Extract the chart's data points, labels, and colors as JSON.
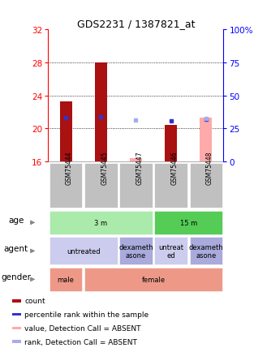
{
  "title": "GDS2231 / 1387821_at",
  "samples": [
    "GSM75444",
    "GSM75445",
    "GSM75447",
    "GSM75446",
    "GSM75448"
  ],
  "ylim_left": [
    16,
    32
  ],
  "ylim_right": [
    0,
    100
  ],
  "yticks_left": [
    16,
    20,
    24,
    28,
    32
  ],
  "yticks_right": [
    0,
    25,
    50,
    75,
    100
  ],
  "ytick_right_labels": [
    "0",
    "25",
    "50",
    "75",
    "100%"
  ],
  "grid_lines": [
    20,
    24,
    28
  ],
  "bars": {
    "count_color": "#aa1111",
    "count_values": [
      23.3,
      28.0,
      null,
      20.4,
      null
    ],
    "rank_color": "#3333cc",
    "rank_values": [
      21.3,
      21.4,
      null,
      20.9,
      21.1
    ],
    "absent_value_color": "#ffaaaa",
    "absent_values": [
      null,
      null,
      16.4,
      null,
      21.3
    ],
    "absent_rank_color": "#aaaaee",
    "absent_rank_values": [
      null,
      null,
      21.0,
      null,
      21.2
    ]
  },
  "sample_box_color": "#c0c0c0",
  "age_groups": [
    {
      "text": "3 m",
      "cols": [
        0,
        1,
        2
      ],
      "color": "#aaeaaa"
    },
    {
      "text": "15 m",
      "cols": [
        3,
        4
      ],
      "color": "#55cc55"
    }
  ],
  "agent_groups": [
    {
      "text": "untreated",
      "cols": [
        0,
        1
      ],
      "color": "#ccccee"
    },
    {
      "text": "dexameth\nasone",
      "cols": [
        2
      ],
      "color": "#aaaadd"
    },
    {
      "text": "untreat\ned",
      "cols": [
        3
      ],
      "color": "#ccccee"
    },
    {
      "text": "dexameth\nasone",
      "cols": [
        4
      ],
      "color": "#aaaadd"
    }
  ],
  "gender_groups": [
    {
      "text": "male",
      "cols": [
        0
      ],
      "color": "#ee9988"
    },
    {
      "text": "female",
      "cols": [
        1,
        2,
        3,
        4
      ],
      "color": "#ee9988"
    }
  ],
  "row_labels": [
    "age",
    "agent",
    "gender"
  ],
  "legend": [
    {
      "color": "#aa1111",
      "label": "count"
    },
    {
      "color": "#3333cc",
      "label": "percentile rank within the sample"
    },
    {
      "color": "#ffaaaa",
      "label": "value, Detection Call = ABSENT"
    },
    {
      "color": "#aaaaee",
      "label": "rank, Detection Call = ABSENT"
    }
  ]
}
